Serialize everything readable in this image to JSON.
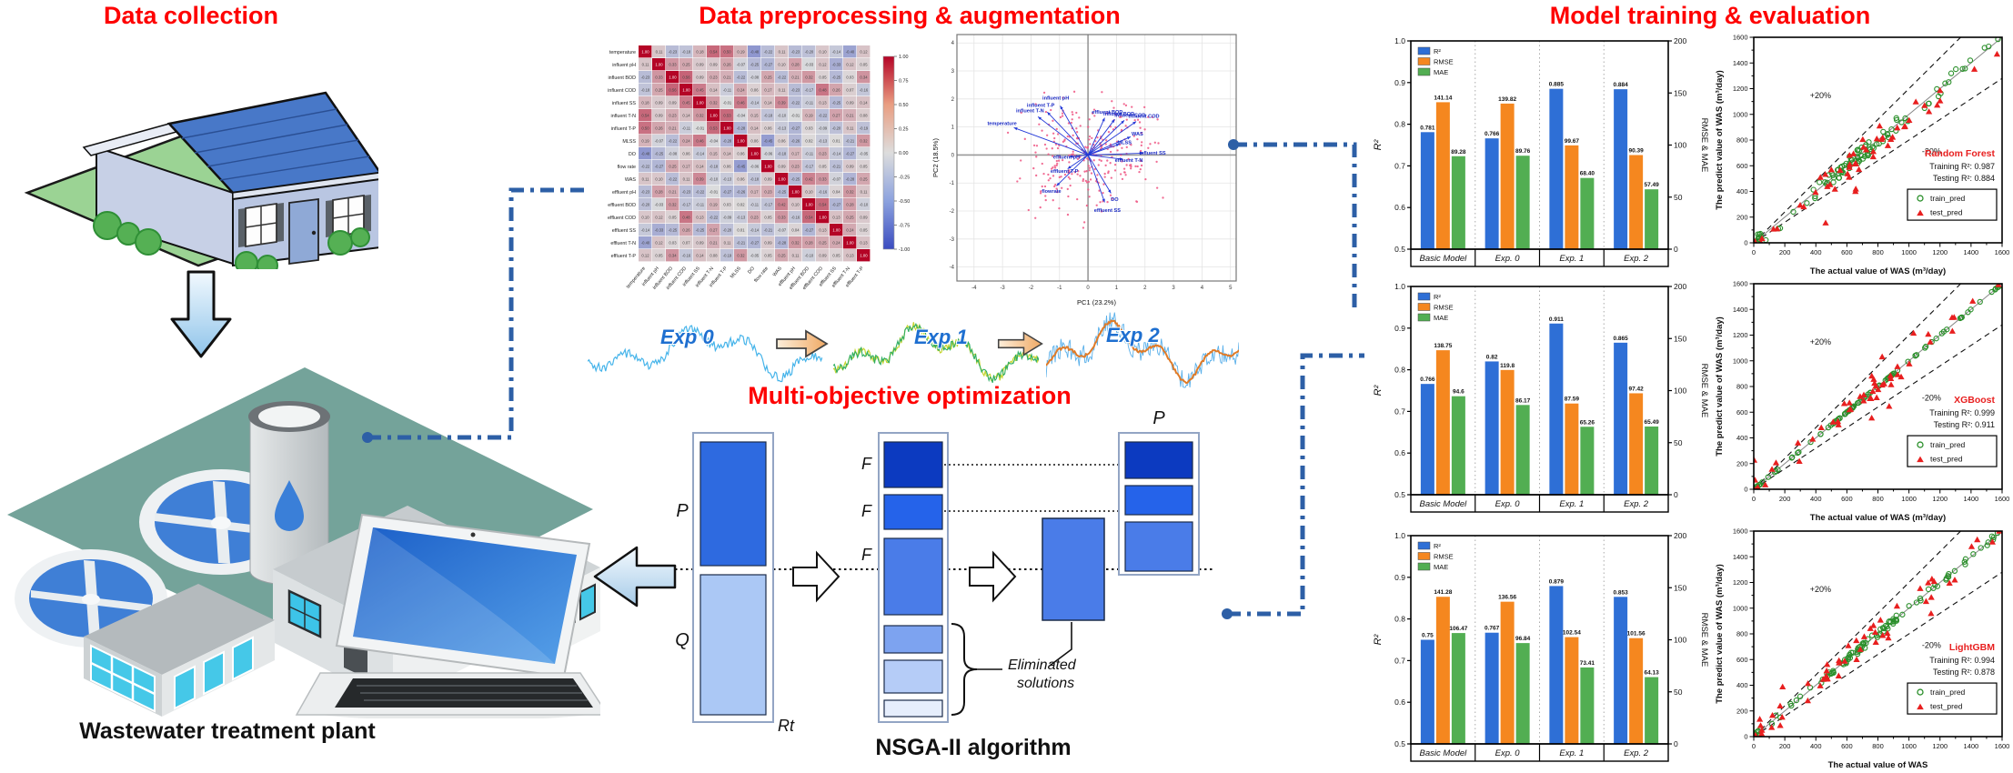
{
  "colors": {
    "title_red": "#fe0000",
    "bar_blue": "#2e6fd6",
    "bar_orange": "#f5871f",
    "bar_green": "#52ae52",
    "train_green": "#2a8f2a",
    "test_red": "#e81f1f",
    "connector": "#2d5fa6",
    "nsga_dark": "#0c3ac0",
    "nsga_mid": "#2563ea",
    "nsga_light": "#4a7ce8",
    "nsga_pale1": "#7da3f0",
    "nsga_pale2": "#b5ccf7",
    "nsga_pale3": "#e6eefc",
    "nsga_q": "#abc8f5"
  },
  "titles": {
    "collection": "Data collection",
    "preprocessing": "Data preprocessing & augmentation",
    "optimization": "Multi-objective optimization",
    "training": "Model training & evaluation"
  },
  "captions": {
    "plant": "Wastewater treatment plant",
    "nsga": "NSGA-II algorithm"
  },
  "optimization": {
    "P": "P",
    "Q": "Q",
    "F": "F",
    "Rt": "Rt",
    "P2": "P",
    "eliminated_line1": "Eliminated",
    "eliminated_line2": "solutions"
  },
  "chart_data": [
    {
      "id": "correlation_heatmap",
      "type": "heatmap",
      "variables": [
        "temperature",
        "influent pH",
        "influent BOD",
        "influent COD",
        "influent SS",
        "influent T-N",
        "influent T-P",
        "MLSS",
        "DO",
        "flow rate",
        "WAS",
        "effluent pH",
        "effluent BOD",
        "effluent COD",
        "effluent SS",
        "effluent T-N",
        "effluent T-P"
      ],
      "diagonal_value": 1.0,
      "colorbar_range": [
        -1,
        1
      ],
      "colorbar_ticks": [
        "1.00",
        "0.75",
        "0.50",
        "0.25",
        "0.00",
        "-0.25",
        "-0.50",
        "-0.75",
        "-1.00"
      ],
      "notable_values": {
        "0,5": 0.54,
        "0,6": 0.5,
        "0,8": -0.48,
        "0,15": -0.4,
        "2,3": 0.56,
        "3,4": 0.45,
        "4,7": 0.46,
        "4,10": 0.39,
        "5,6": 0.53,
        "7,9": -0.45,
        "1,14": -0.33,
        "10,12": 0.42,
        "3,13": 0.48,
        "12,13": 0.54,
        "10,13": 0.33
      }
    },
    {
      "id": "pca_biplot",
      "type": "scatter",
      "xlabel": "PC1 (23.2%)",
      "ylabel": "PC2 (18.5%)",
      "xlim": [
        -4.6,
        5.2
      ],
      "ylim": [
        -4.5,
        4.3
      ],
      "xticks": [
        -4,
        -3,
        -2,
        -1,
        0,
        1,
        2,
        3,
        4,
        5
      ],
      "yticks": [
        -4,
        -3,
        -2,
        -1,
        0,
        1,
        2,
        3,
        4
      ],
      "point_color": "#ef5d88",
      "vector_color": "#2238d8",
      "vectors": [
        {
          "label": "temperature",
          "x": -2.0,
          "y": 0.75
        },
        {
          "label": "influent pH",
          "x": -0.75,
          "y": 1.35
        },
        {
          "label": "influent T-N",
          "x": -1.35,
          "y": 1.05
        },
        {
          "label": "influent T-P",
          "x": -1.1,
          "y": 1.18
        },
        {
          "label": "influent BOD",
          "x": 0.72,
          "y": 0.98
        },
        {
          "label": "influent COD",
          "x": 0.98,
          "y": 0.95
        },
        {
          "label": "effluent BOD",
          "x": 0.45,
          "y": 1.02
        },
        {
          "label": "effluent COD",
          "x": 1.3,
          "y": 0.92
        },
        {
          "label": "WAS",
          "x": 1.15,
          "y": 0.5
        },
        {
          "label": "MLSS",
          "x": 0.85,
          "y": 0.3
        },
        {
          "label": "influent SS",
          "x": 1.5,
          "y": 0.05
        },
        {
          "label": "effluent T-N",
          "x": 0.95,
          "y": -0.12
        },
        {
          "label": "effluent pH",
          "x": -0.5,
          "y": -0.05
        },
        {
          "label": "effluent T-P",
          "x": -0.55,
          "y": -0.38
        },
        {
          "label": "flowrate",
          "x": -0.85,
          "y": -0.85
        },
        {
          "label": "DO",
          "x": 0.62,
          "y": -1.05
        },
        {
          "label": "effluent SS",
          "x": 0.45,
          "y": -1.3
        }
      ]
    },
    {
      "id": "augmentation_series",
      "type": "line",
      "series": [
        {
          "label": "Exp 0",
          "colors": [
            "#46b4ea"
          ]
        },
        {
          "label": "Exp 1",
          "colors": [
            "#c6d531",
            "#2fae62"
          ]
        },
        {
          "label": "Exp 2",
          "colors": [
            "#5ab0ea",
            "#e07b28"
          ]
        }
      ]
    },
    {
      "id": "bars_random_forest",
      "type": "bar",
      "categories": [
        "Basic Model",
        "Exp. 0",
        "Exp. 1",
        "Exp. 2"
      ],
      "ylabel_left": "R²",
      "ylabel_right": "RMSE & MAE",
      "ylim_left": [
        0.5,
        1.0
      ],
      "ylim_right": [
        0,
        200
      ],
      "legend": [
        "R²",
        "RMSE",
        "MAE"
      ],
      "series": [
        {
          "name": "R²",
          "axis": "left",
          "values": [
            0.781,
            0.766,
            0.885,
            0.884
          ],
          "labels": [
            "0.781",
            "0.766",
            "0.885",
            "0.884"
          ]
        },
        {
          "name": "RMSE",
          "axis": "right",
          "values": [
            141.14,
            139.82,
            99.67,
            90.39
          ],
          "labels": [
            "141.14",
            "139.82",
            "99.67",
            "90.39"
          ]
        },
        {
          "name": "MAE",
          "axis": "right",
          "values": [
            89.28,
            89.76,
            68.4,
            57.49
          ],
          "labels": [
            "89.28",
            "89.76",
            "68.40",
            "57.49"
          ]
        }
      ]
    },
    {
      "id": "bars_xgboost",
      "type": "bar",
      "categories": [
        "Basic Model",
        "Exp. 0",
        "Exp. 1",
        "Exp. 2"
      ],
      "ylabel_left": "R²",
      "ylabel_right": "RMSE & MAE",
      "ylim_left": [
        0.5,
        1.0
      ],
      "ylim_right": [
        0,
        200
      ],
      "legend": [
        "R²",
        "RMSE",
        "MAE"
      ],
      "series": [
        {
          "name": "R²",
          "axis": "left",
          "values": [
            0.766,
            0.82,
            0.911,
            0.865
          ],
          "labels": [
            "0.766",
            "0.82",
            "0.911",
            "0.865"
          ]
        },
        {
          "name": "RMSE",
          "axis": "right",
          "values": [
            138.75,
            119.8,
            87.59,
            97.42
          ],
          "labels": [
            "138.75",
            "119.8",
            "87.59",
            "97.42"
          ]
        },
        {
          "name": "MAE",
          "axis": "right",
          "values": [
            94.6,
            86.17,
            65.26,
            65.49
          ],
          "labels": [
            "94.6",
            "86.17",
            "65.26",
            "65.49"
          ]
        }
      ]
    },
    {
      "id": "bars_lightgbm",
      "type": "bar",
      "categories": [
        "Basic Model",
        "Exp. 0",
        "Exp. 1",
        "Exp. 2"
      ],
      "ylabel_left": "R²",
      "ylabel_right": "RMSE & MAE",
      "ylim_left": [
        0.5,
        1.0
      ],
      "ylim_right": [
        0,
        200
      ],
      "legend": [
        "R²",
        "RMSE",
        "MAE"
      ],
      "series": [
        {
          "name": "R²",
          "axis": "left",
          "values": [
            0.75,
            0.767,
            0.879,
            0.853
          ],
          "labels": [
            "0.75",
            "0.767",
            "0.879",
            "0.853"
          ]
        },
        {
          "name": "RMSE",
          "axis": "right",
          "values": [
            141.28,
            136.56,
            102.54,
            101.56
          ],
          "labels": [
            "141.28",
            "136.56",
            "102.54",
            "101.56"
          ]
        },
        {
          "name": "MAE",
          "axis": "right",
          "values": [
            106.47,
            96.84,
            73.41,
            64.13
          ],
          "labels": [
            "106.47",
            "96.84",
            "73.41",
            "64.13"
          ]
        }
      ]
    },
    {
      "id": "scatter_random_forest",
      "type": "scatter",
      "model": "Random Forest",
      "training_text": "Training R²: 0.987",
      "testing_text": "Testing R²: 0.884",
      "xlabel": "The actual value of WAS (m³/day)",
      "ylabel": "The predict value of WAS (m³/day)",
      "xlim": [
        0,
        1600
      ],
      "ylim": [
        0,
        1600
      ],
      "tick_step": 200,
      "annotations": [
        "+20%",
        "-20%"
      ],
      "legend": [
        "train_pred",
        "test_pred"
      ]
    },
    {
      "id": "scatter_xgboost",
      "type": "scatter",
      "model": "XGBoost",
      "training_text": "Training R²: 0.999",
      "testing_text": "Testing R²: 0.911",
      "xlabel": "The actual value of WAS (m³/day)",
      "ylabel": "The predict value of WAS (m³/day)",
      "xlim": [
        0,
        1600
      ],
      "ylim": [
        0,
        1600
      ],
      "tick_step": 200,
      "annotations": [
        "+20%",
        "-20%"
      ],
      "legend": [
        "train_pred",
        "test_pred"
      ]
    },
    {
      "id": "scatter_lightgbm",
      "type": "scatter",
      "model": "LightGBM",
      "training_text": "Training R²: 0.994",
      "testing_text": "Testing R²: 0.878",
      "xlabel": "The actual value of WAS",
      "ylabel": "The predict value of WAS (m³/day)",
      "xlim": [
        0,
        1600
      ],
      "ylim": [
        0,
        1600
      ],
      "tick_step": 200,
      "annotations": [
        "+20%",
        "-20%"
      ],
      "legend": [
        "train_pred",
        "test_pred"
      ]
    }
  ]
}
